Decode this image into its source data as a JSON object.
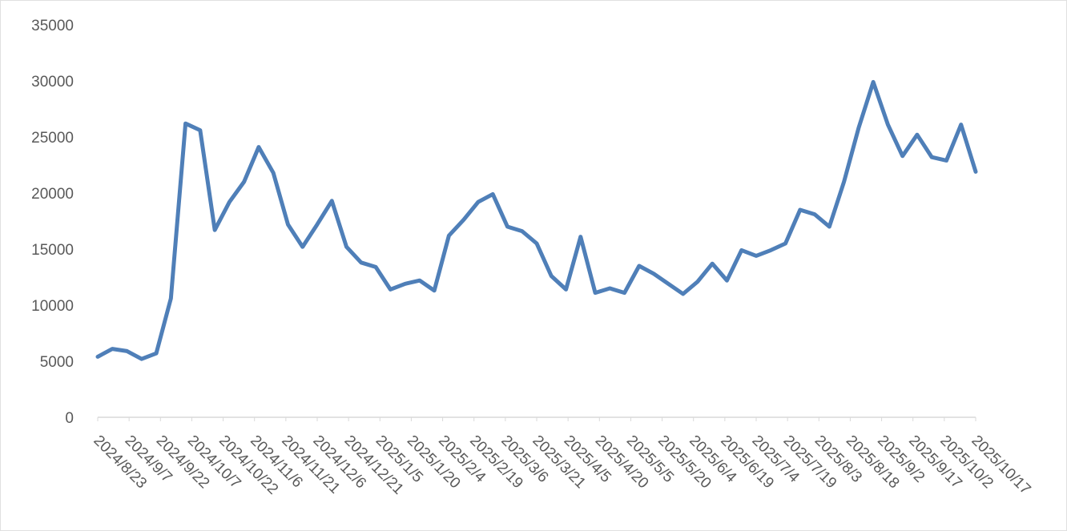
{
  "chart_data": {
    "type": "line",
    "x": [
      "2024/8/23",
      "2024/8/30",
      "2024/9/6",
      "2024/9/13",
      "2024/9/20",
      "2024/9/27",
      "2024/10/4",
      "2024/10/11",
      "2024/10/18",
      "2024/10/25",
      "2024/11/1",
      "2024/11/8",
      "2024/11/15",
      "2024/11/22",
      "2024/11/29",
      "2024/12/6",
      "2024/12/13",
      "2024/12/20",
      "2024/12/27",
      "2025/1/3",
      "2025/1/10",
      "2025/1/17",
      "2025/1/24",
      "2025/1/31",
      "2025/2/7",
      "2025/2/14",
      "2025/2/21",
      "2025/2/28",
      "2025/3/7",
      "2025/3/14",
      "2025/3/21",
      "2025/3/28",
      "2025/4/4",
      "2025/4/11",
      "2025/4/18",
      "2025/4/25",
      "2025/5/2",
      "2025/5/9",
      "2025/5/16",
      "2025/5/23",
      "2025/5/30",
      "2025/6/6",
      "2025/6/13",
      "2025/6/20",
      "2025/6/27",
      "2025/7/4",
      "2025/7/11",
      "2025/7/18",
      "2025/7/25",
      "2025/8/1",
      "2025/8/8",
      "2025/8/15",
      "2025/8/22",
      "2025/8/29",
      "2025/9/5",
      "2025/9/12",
      "2025/9/19",
      "2025/9/26",
      "2025/10/3",
      "2025/10/10",
      "2025/10/17"
    ],
    "series": [
      {
        "color": "#4f7fb8",
        "values": [
          5400,
          6100,
          5900,
          5200,
          5700,
          10600,
          26200,
          25600,
          16700,
          19200,
          21000,
          24100,
          21800,
          17200,
          15200,
          17200,
          19300,
          15200,
          13800,
          13400,
          11400,
          11900,
          12200,
          11300,
          16200,
          17600,
          19200,
          19900,
          17000,
          16600,
          15500,
          12600,
          11400,
          16100,
          11100,
          11500,
          11100,
          13500,
          12800,
          11900,
          11000,
          12100,
          13700,
          12200,
          14900,
          14400,
          14900,
          15500,
          18500,
          18100,
          17000,
          21000,
          25800,
          29900,
          26100,
          23300,
          25200,
          23200,
          22900,
          26100,
          21900
        ]
      }
    ],
    "xlim": [
      "2024/8/23",
      "2025/10/17"
    ],
    "xticks": [
      "2024/8/23",
      "2024/9/7",
      "2024/9/22",
      "2024/10/7",
      "2024/10/22",
      "2024/11/6",
      "2024/11/21",
      "2024/12/6",
      "2024/12/21",
      "2025/1/5",
      "2025/1/20",
      "2025/2/4",
      "2025/2/19",
      "2025/3/6",
      "2025/3/21",
      "2025/4/5",
      "2025/4/20",
      "2025/5/5",
      "2025/5/20",
      "2025/6/4",
      "2025/6/19",
      "2025/7/4",
      "2025/7/19",
      "2025/8/3",
      "2025/8/18",
      "2025/9/2",
      "2025/9/17",
      "2025/10/2",
      "2025/10/17"
    ],
    "ylim": [
      0,
      35000
    ],
    "yticks": [
      0,
      5000,
      10000,
      15000,
      20000,
      25000,
      30000,
      35000
    ],
    "grid": false
  }
}
